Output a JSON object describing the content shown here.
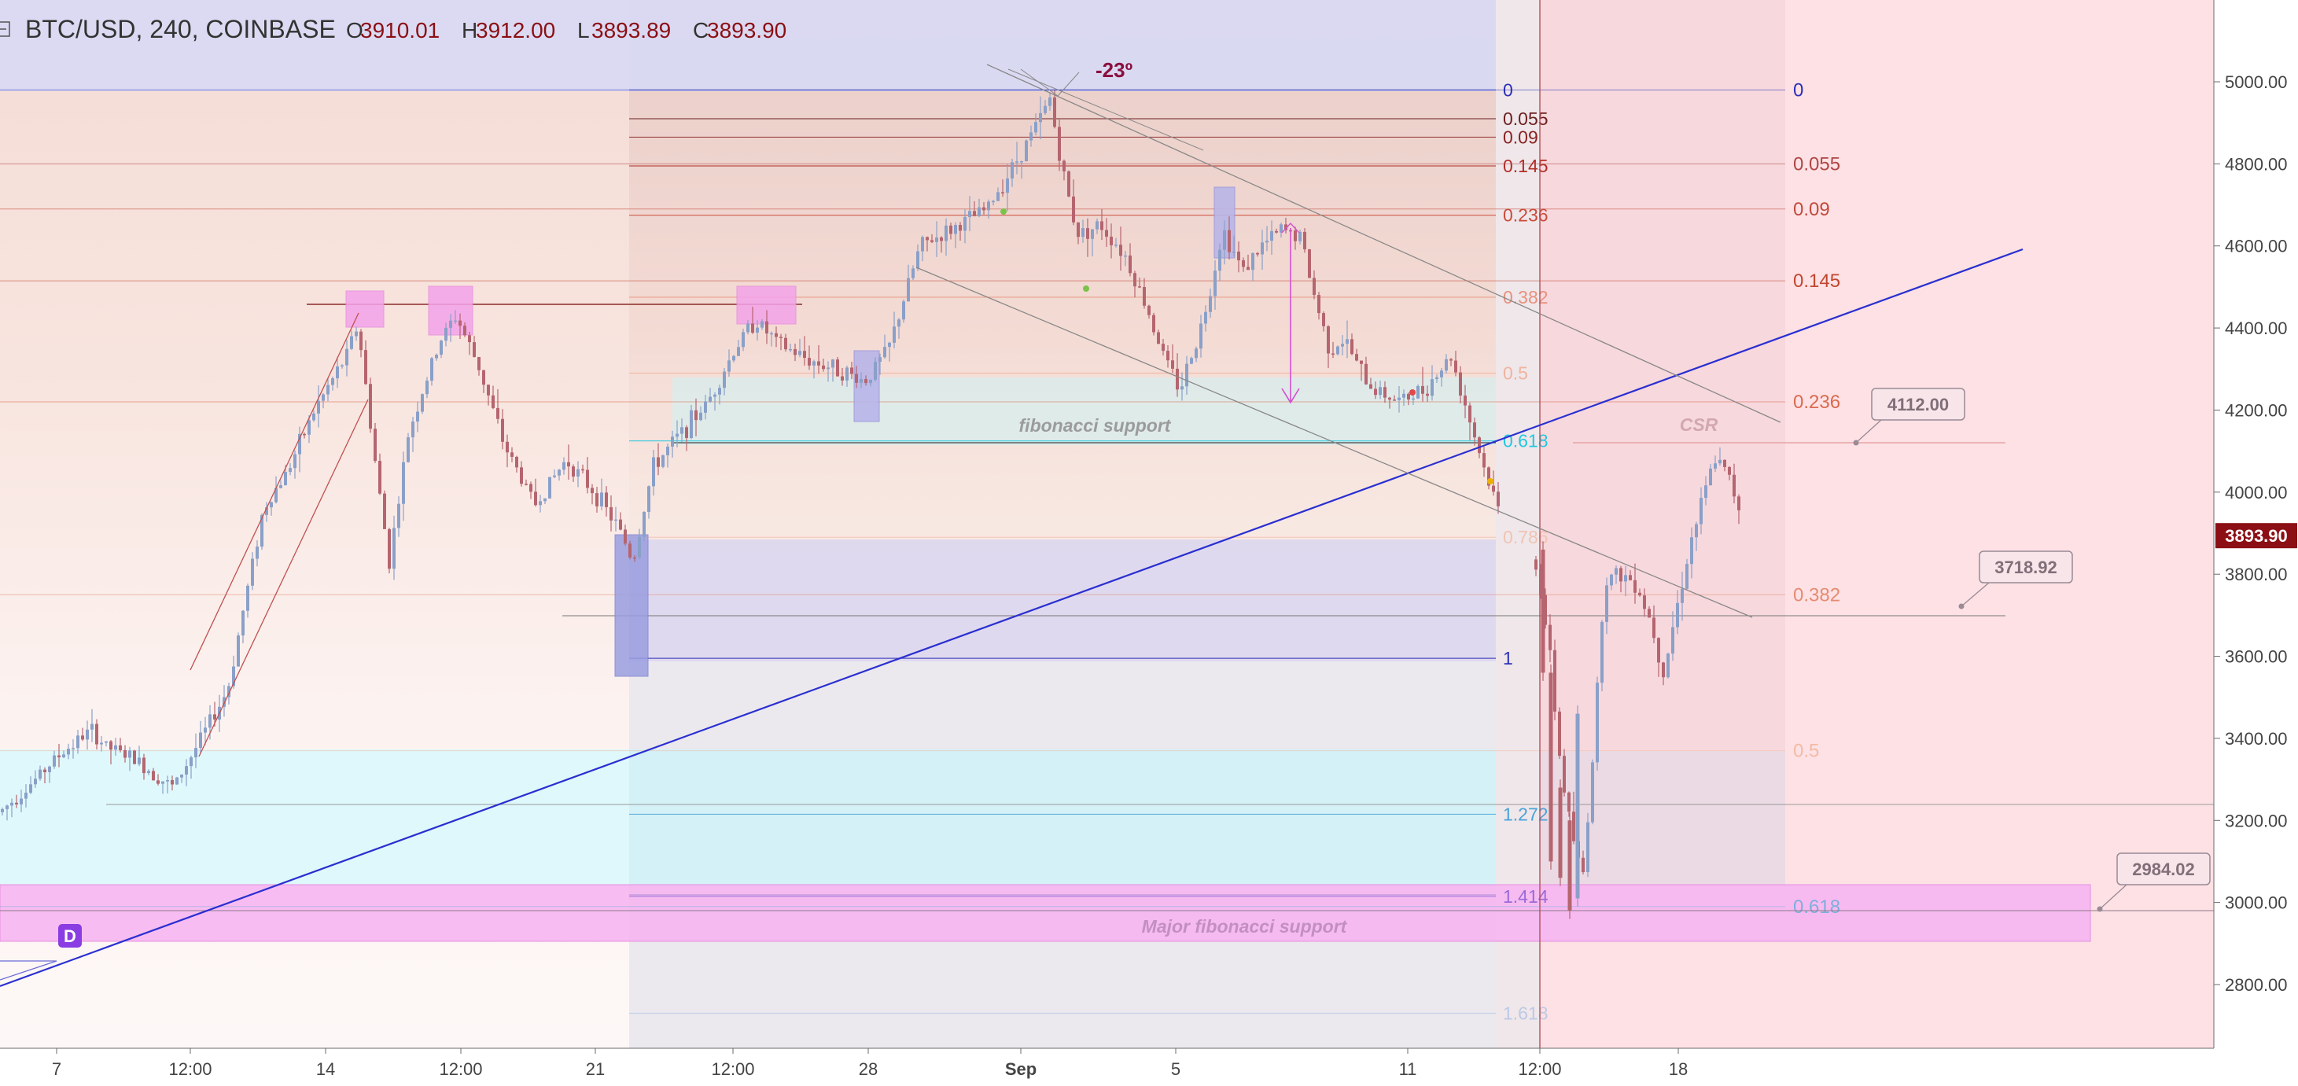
{
  "header": {
    "symbol": "BTC/USD, 240, COINBASE",
    "o_label": "O",
    "o_value": "3910.01",
    "h_label": "H",
    "h_value": "3912.00",
    "l_label": "L",
    "l_value": "3893.89",
    "c_label": "C",
    "c_value": "3893.90",
    "menu_icon": "collapse-square-icon"
  },
  "colors": {
    "up": "#8aa0c8",
    "down": "#b5656f",
    "price_tag": "#8b0f14",
    "fib_blue_line": "#2a2fd0",
    "pink_zone": "#f4a9ee",
    "cyan_zone": "#dff8fb"
  },
  "labels": {
    "angle": "-23º",
    "fib_support": "fibonacci support",
    "major_fib_support": "Major fibonacci support",
    "csr": "CSR",
    "marker_d": "D"
  },
  "callouts": [
    {
      "id": "c4112",
      "text": "4112.00"
    },
    {
      "id": "c3718",
      "text": "3718.92"
    },
    {
      "id": "c2984",
      "text": "2984.02"
    }
  ],
  "fib_left": [
    {
      "ratio": "0",
      "price": 4980,
      "color": "#2b2fb6"
    },
    {
      "ratio": "0.055",
      "price": 4910,
      "color": "#6d2020"
    },
    {
      "ratio": "0.09",
      "price": 4865,
      "color": "#8a2323"
    },
    {
      "ratio": "0.145",
      "price": 4795,
      "color": "#b22e26"
    },
    {
      "ratio": "0.236",
      "price": 4675,
      "color": "#cc4b3a"
    },
    {
      "ratio": "0.382",
      "price": 4475,
      "color": "#e8917e"
    },
    {
      "ratio": "0.5",
      "price": 4290,
      "color": "#f1b39d"
    },
    {
      "ratio": "0.618",
      "price": 4125,
      "color": "#22c8e0"
    },
    {
      "ratio": "0.786",
      "price": 3890,
      "color": "#f0c4b4"
    },
    {
      "ratio": "1",
      "price": 3595,
      "color": "#2b2fb6"
    },
    {
      "ratio": "1.272",
      "price": 3215,
      "color": "#4aa3d8"
    },
    {
      "ratio": "1.414",
      "price": 3015,
      "color": "#9a6bd8"
    },
    {
      "ratio": "1.618",
      "price": 2730,
      "color": "#bcc9e6"
    }
  ],
  "fib_right": [
    {
      "ratio": "0",
      "price": 4980,
      "color": "#2b2fb6"
    },
    {
      "ratio": "0.055",
      "price": 4800,
      "color": "#b04646"
    },
    {
      "ratio": "0.09",
      "price": 4690,
      "color": "#c14a3c"
    },
    {
      "ratio": "0.145",
      "price": 4515,
      "color": "#c0462f"
    },
    {
      "ratio": "0.236",
      "price": 4220,
      "color": "#d96a4f"
    },
    {
      "ratio": "0.382",
      "price": 3750,
      "color": "#e48c72"
    },
    {
      "ratio": "0.5",
      "price": 3370,
      "color": "#f2bba6"
    },
    {
      "ratio": "0.618",
      "price": 2990,
      "color": "#7eaedb"
    }
  ],
  "chart_data": {
    "type": "candlestick",
    "title": "BTC/USD, 240, COINBASE",
    "ylim": [
      2700,
      5200
    ],
    "y_ticks": [
      "5000.00",
      "4800.00",
      "4600.00",
      "4400.00",
      "4200.00",
      "4000.00",
      "3800.00",
      "3600.00",
      "3400.00",
      "3200.00",
      "3000.00",
      "2800.00"
    ],
    "x_ticks": [
      {
        "label": "7",
        "bold": false
      },
      {
        "label": "12:00",
        "bold": false
      },
      {
        "label": "14",
        "bold": false
      },
      {
        "label": "12:00",
        "bold": false
      },
      {
        "label": "21",
        "bold": false
      },
      {
        "label": "12:00",
        "bold": false
      },
      {
        "label": "28",
        "bold": false
      },
      {
        "label": "Sep",
        "bold": true
      },
      {
        "label": "5",
        "bold": false
      },
      {
        "label": "11",
        "bold": false
      },
      {
        "label": "12:00",
        "bold": false
      },
      {
        "label": "18",
        "bold": false
      }
    ],
    "last_price": "3893.90",
    "price_anchors": [
      [
        0,
        3220
      ],
      [
        45,
        3300
      ],
      [
        70,
        3350
      ],
      [
        115,
        3420
      ],
      [
        135,
        3380
      ],
      [
        170,
        3350
      ],
      [
        220,
        3280
      ],
      [
        250,
        3380
      ],
      [
        290,
        3520
      ],
      [
        310,
        3720
      ],
      [
        335,
        3960
      ],
      [
        365,
        4050
      ],
      [
        400,
        4200
      ],
      [
        440,
        4330
      ],
      [
        455,
        4410
      ],
      [
        480,
        4030
      ],
      [
        495,
        3830
      ],
      [
        520,
        4150
      ],
      [
        560,
        4370
      ],
      [
        580,
        4430
      ],
      [
        610,
        4300
      ],
      [
        640,
        4120
      ],
      [
        680,
        3970
      ],
      [
        720,
        4080
      ],
      [
        760,
        3990
      ],
      [
        790,
        3900
      ],
      [
        805,
        3830
      ],
      [
        830,
        4060
      ],
      [
        860,
        4130
      ],
      [
        900,
        4220
      ],
      [
        935,
        4350
      ],
      [
        960,
        4420
      ],
      [
        990,
        4360
      ],
      [
        1030,
        4320
      ],
      [
        1065,
        4300
      ],
      [
        1100,
        4270
      ],
      [
        1130,
        4350
      ],
      [
        1170,
        4600
      ],
      [
        1210,
        4640
      ],
      [
        1255,
        4690
      ],
      [
        1290,
        4800
      ],
      [
        1320,
        4900
      ],
      [
        1335,
        4960
      ],
      [
        1350,
        4790
      ],
      [
        1370,
        4630
      ],
      [
        1400,
        4650
      ],
      [
        1430,
        4580
      ],
      [
        1460,
        4440
      ],
      [
        1480,
        4330
      ],
      [
        1500,
        4250
      ],
      [
        1530,
        4420
      ],
      [
        1555,
        4640
      ],
      [
        1580,
        4540
      ],
      [
        1605,
        4600
      ],
      [
        1630,
        4640
      ],
      [
        1655,
        4620
      ],
      [
        1668,
        4500
      ],
      [
        1690,
        4350
      ],
      [
        1710,
        4370
      ],
      [
        1740,
        4260
      ],
      [
        1780,
        4220
      ],
      [
        1810,
        4250
      ],
      [
        1845,
        4330
      ],
      [
        1870,
        4170
      ],
      [
        1890,
        4040
      ],
      [
        1910,
        3930
      ],
      [
        1935,
        3860
      ],
      [
        1955,
        3820
      ],
      [
        1970,
        3610
      ],
      [
        1985,
        3320
      ],
      [
        1998,
        3180
      ],
      [
        2012,
        3050
      ],
      [
        2025,
        3350
      ],
      [
        2040,
        3790
      ],
      [
        2060,
        3800
      ],
      [
        2080,
        3780
      ],
      [
        2100,
        3680
      ],
      [
        2115,
        3560
      ],
      [
        2130,
        3700
      ],
      [
        2150,
        3880
      ],
      [
        2165,
        3980
      ],
      [
        2180,
        4080
      ],
      [
        2195,
        4050
      ],
      [
        2210,
        3970
      ],
      [
        2218,
        3950
      ],
      [
        2212,
        3893
      ]
    ]
  }
}
